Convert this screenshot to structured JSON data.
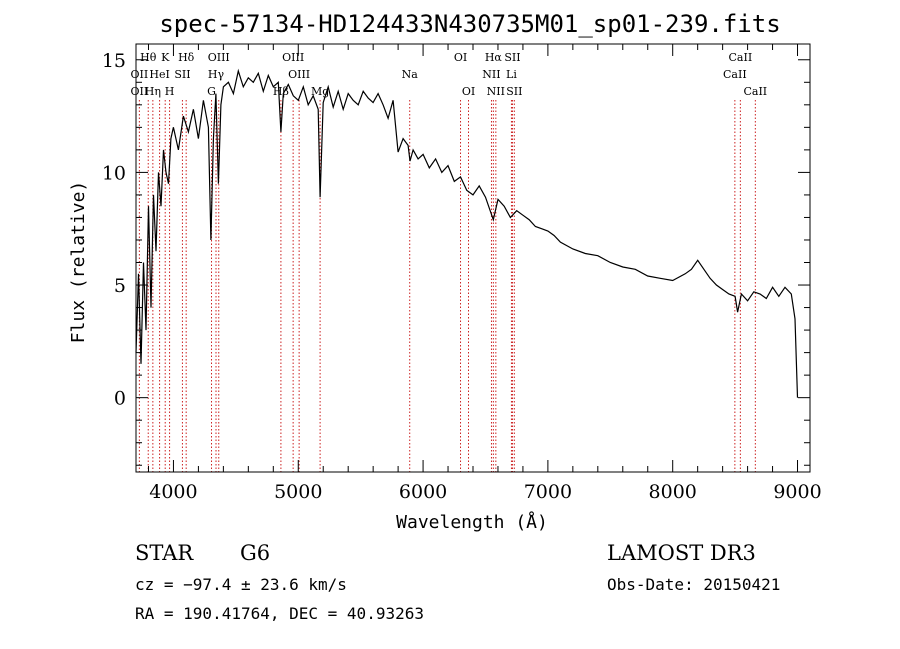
{
  "chart_data": {
    "type": "line",
    "title": "spec-57134-HD124433N430735M01_sp01-239.fits",
    "xlabel": "Wavelength (Å)",
    "ylabel": "Flux (relative)",
    "xlim": [
      3700,
      9100
    ],
    "ylim": [
      -3.3,
      15.7
    ],
    "xticks": [
      4000,
      5000,
      6000,
      7000,
      8000,
      9000
    ],
    "xtick_labels": [
      "4000",
      "5000",
      "6000",
      "7000",
      "8000",
      "9000"
    ],
    "yticks": [
      0,
      5,
      10,
      15
    ],
    "ytick_labels": [
      "0",
      "5",
      "10",
      "15"
    ],
    "series": [
      {
        "name": "spectrum",
        "color": "#000000",
        "x": [
          3700,
          3720,
          3740,
          3760,
          3780,
          3800,
          3820,
          3840,
          3860,
          3880,
          3900,
          3920,
          3940,
          3960,
          3980,
          4000,
          4040,
          4080,
          4120,
          4160,
          4200,
          4240,
          4280,
          4300,
          4320,
          4340,
          4360,
          4380,
          4400,
          4440,
          4480,
          4520,
          4560,
          4600,
          4640,
          4680,
          4720,
          4760,
          4800,
          4840,
          4861,
          4880,
          4920,
          4960,
          5000,
          5040,
          5080,
          5120,
          5160,
          5175,
          5200,
          5240,
          5280,
          5320,
          5360,
          5400,
          5440,
          5480,
          5520,
          5560,
          5600,
          5640,
          5680,
          5720,
          5760,
          5800,
          5840,
          5880,
          5895,
          5920,
          5960,
          6000,
          6050,
          6100,
          6150,
          6200,
          6250,
          6300,
          6350,
          6400,
          6450,
          6500,
          6563,
          6600,
          6650,
          6700,
          6750,
          6800,
          6850,
          6900,
          6950,
          7000,
          7050,
          7100,
          7200,
          7300,
          7400,
          7500,
          7600,
          7700,
          7800,
          7900,
          8000,
          8100,
          8150,
          8200,
          8250,
          8300,
          8350,
          8400,
          8450,
          8500,
          8520,
          8550,
          8600,
          8650,
          8700,
          8750,
          8800,
          8850,
          8900,
          8950,
          8980,
          9000
        ],
        "y": [
          2.0,
          5.5,
          1.5,
          6.0,
          3.0,
          8.5,
          4.0,
          9.0,
          6.5,
          10.0,
          8.5,
          11.0,
          10.0,
          9.5,
          11.5,
          12.0,
          11.0,
          12.5,
          11.8,
          12.8,
          11.5,
          13.2,
          12.0,
          7.0,
          11.5,
          13.5,
          9.5,
          13.0,
          13.8,
          14.0,
          13.5,
          14.5,
          13.8,
          14.2,
          14.0,
          14.4,
          13.6,
          14.3,
          13.8,
          14.0,
          11.8,
          13.5,
          13.9,
          13.4,
          13.2,
          13.8,
          13.0,
          13.4,
          12.8,
          8.9,
          13.1,
          13.8,
          12.9,
          13.6,
          12.8,
          13.5,
          13.2,
          13.0,
          13.6,
          13.3,
          13.1,
          13.5,
          13.0,
          12.4,
          13.2,
          10.9,
          11.5,
          11.2,
          10.5,
          11.0,
          10.6,
          10.8,
          10.2,
          10.6,
          10.0,
          10.3,
          9.6,
          9.8,
          9.2,
          9.0,
          9.4,
          8.9,
          7.9,
          8.8,
          8.5,
          8.0,
          8.3,
          8.1,
          7.9,
          7.6,
          7.5,
          7.4,
          7.2,
          6.9,
          6.6,
          6.4,
          6.3,
          6.0,
          5.8,
          5.7,
          5.4,
          5.3,
          5.2,
          5.5,
          5.7,
          6.1,
          5.7,
          5.3,
          5.0,
          4.8,
          4.6,
          4.5,
          3.8,
          4.6,
          4.3,
          4.7,
          4.6,
          4.4,
          4.9,
          4.5,
          4.9,
          4.6,
          3.5,
          0.0
        ]
      }
    ],
    "lines": [
      {
        "name": "OII",
        "wavelength": 3727,
        "row": 2
      },
      {
        "name": "OII",
        "wavelength": 3727,
        "row": 3
      },
      {
        "name": "Hθ",
        "wavelength": 3798,
        "row": 1
      },
      {
        "name": "Hη",
        "wavelength": 3835,
        "row": 3
      },
      {
        "name": "HeI",
        "wavelength": 3889,
        "row": 2
      },
      {
        "name": "K",
        "wavelength": 3934,
        "row": 1
      },
      {
        "name": "H",
        "wavelength": 3969,
        "row": 3
      },
      {
        "name": "SII",
        "wavelength": 4072,
        "row": 2
      },
      {
        "name": "Hδ",
        "wavelength": 4102,
        "row": 1
      },
      {
        "name": "G",
        "wavelength": 4305,
        "row": 3
      },
      {
        "name": "Hγ",
        "wavelength": 4341,
        "row": 2
      },
      {
        "name": "OIII",
        "wavelength": 4363,
        "row": 1
      },
      {
        "name": "Hβ",
        "wavelength": 4861,
        "row": 3
      },
      {
        "name": "OIII",
        "wavelength": 4959,
        "row": 1
      },
      {
        "name": "OIII",
        "wavelength": 5007,
        "row": 2
      },
      {
        "name": "Mg",
        "wavelength": 5175,
        "row": 3
      },
      {
        "name": "Na",
        "wavelength": 5893,
        "row": 2
      },
      {
        "name": "OI",
        "wavelength": 6300,
        "row": 1
      },
      {
        "name": "OI",
        "wavelength": 6364,
        "row": 3
      },
      {
        "name": "NII",
        "wavelength": 6548,
        "row": 2
      },
      {
        "name": "Hα",
        "wavelength": 6563,
        "row": 1
      },
      {
        "name": "NII",
        "wavelength": 6583,
        "row": 3
      },
      {
        "name": "SII",
        "wavelength": 6716,
        "row": 1
      },
      {
        "name": "Li",
        "wavelength": 6708,
        "row": 2
      },
      {
        "name": "SII",
        "wavelength": 6731,
        "row": 3
      },
      {
        "name": "CaII",
        "wavelength": 8498,
        "row": 2
      },
      {
        "name": "CaII",
        "wavelength": 8542,
        "row": 1
      },
      {
        "name": "CaII",
        "wavelength": 8662,
        "row": 3
      }
    ]
  },
  "info": {
    "object_type": "STAR",
    "subclass": "G6",
    "survey": "LAMOST DR3",
    "cz": "cz = −97.4 ± 23.6 km/s",
    "obs_date": "Obs-Date: 20150421",
    "coords": "RA = 190.41764, DEC =  40.93263"
  },
  "colors": {
    "line_marker": "#cc2222",
    "spectrum": "#000000",
    "axes": "#000000"
  }
}
